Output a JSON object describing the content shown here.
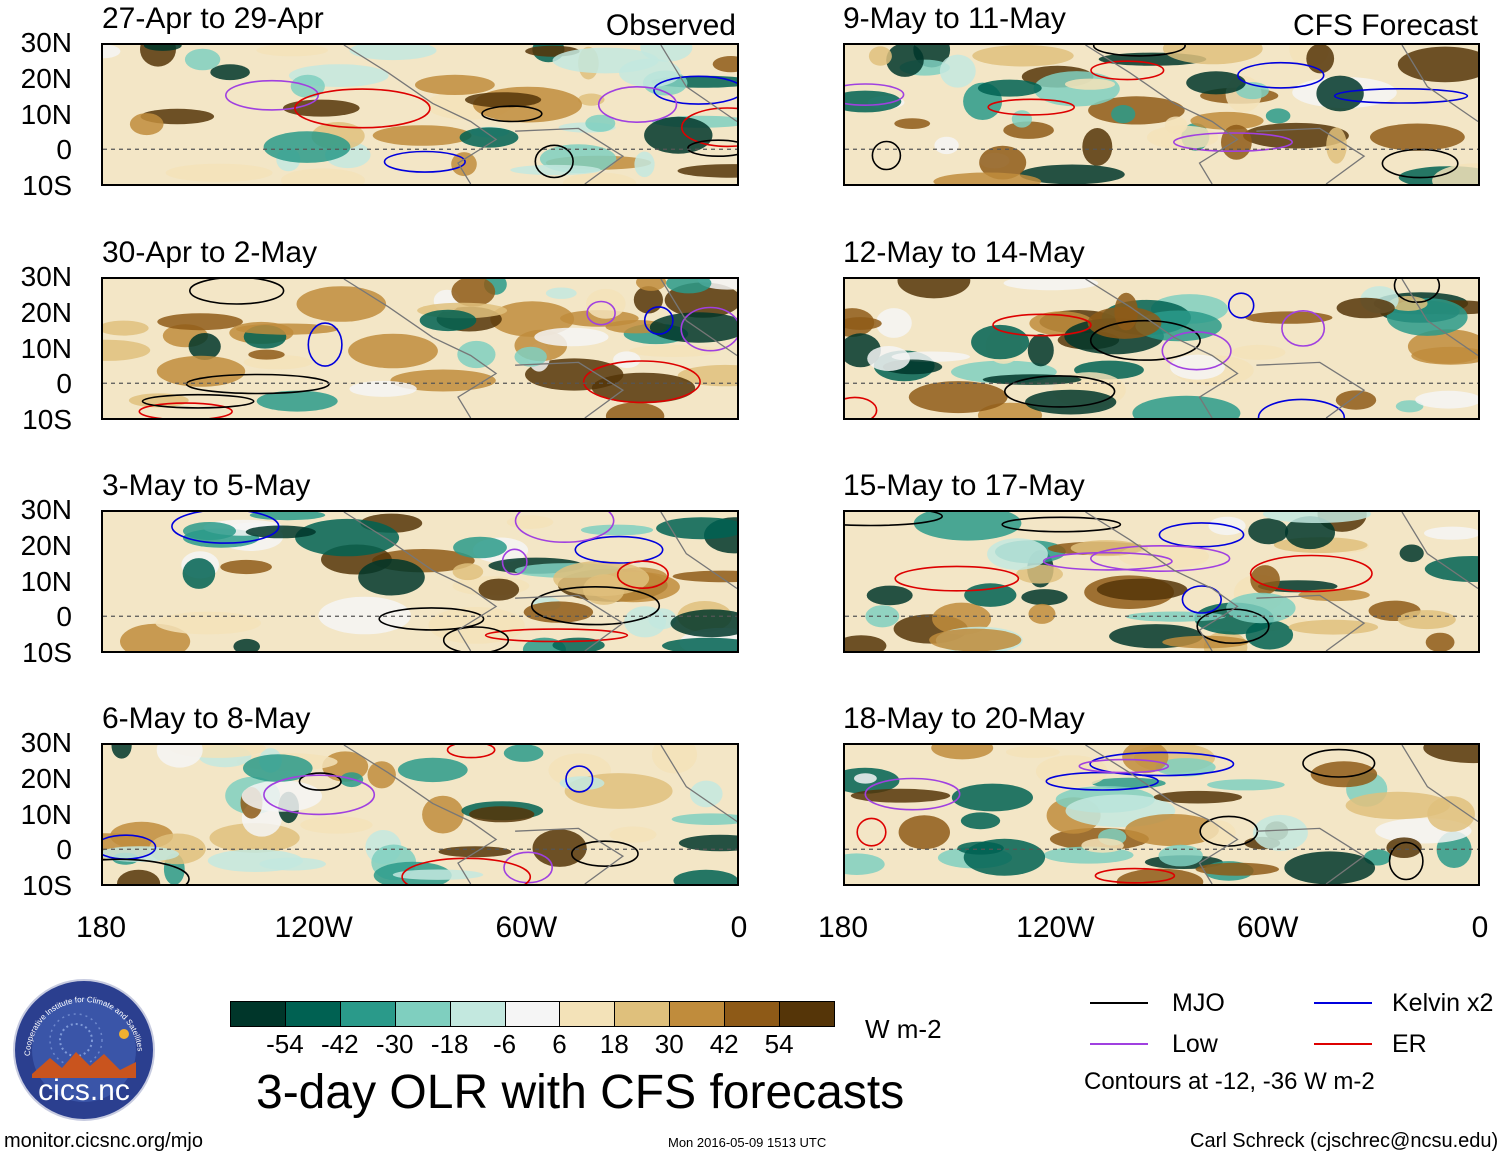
{
  "header": {
    "left_label": "Observed",
    "right_label": "CFS Forecast"
  },
  "panels": [
    {
      "title": "27-Apr to 29-Apr",
      "column": "observed",
      "row": 0
    },
    {
      "title": "30-Apr to 2-May",
      "column": "observed",
      "row": 1
    },
    {
      "title": "3-May to 5-May",
      "column": "observed",
      "row": 2
    },
    {
      "title": "6-May to 8-May",
      "column": "observed",
      "row": 3
    },
    {
      "title": "9-May to 11-May",
      "column": "forecast",
      "row": 0
    },
    {
      "title": "12-May to 14-May",
      "column": "forecast",
      "row": 1
    },
    {
      "title": "15-May to 17-May",
      "column": "forecast",
      "row": 2
    },
    {
      "title": "18-May to 20-May",
      "column": "forecast",
      "row": 3
    }
  ],
  "axes": {
    "lat_labels": [
      "30N",
      "20N",
      "10N",
      "0",
      "10S"
    ],
    "lat_values": [
      30,
      20,
      10,
      0,
      -10
    ],
    "lon_labels": [
      "180",
      "120W",
      "60W",
      "0"
    ],
    "lon_values": [
      -180,
      -120,
      -60,
      0
    ]
  },
  "colorbar": {
    "unit": "W m-2",
    "ticks": [
      "-54",
      "-42",
      "-30",
      "-18",
      "-6",
      "6",
      "18",
      "30",
      "42",
      "54"
    ],
    "colors": [
      "#00362a",
      "#006152",
      "#2a9a8a",
      "#7fcfbf",
      "#c3e8df",
      "#f5f5f5",
      "#f3e2b8",
      "#dfc07c",
      "#c08c3c",
      "#8e5a17",
      "#553508"
    ]
  },
  "main_title": "3-day OLR with CFS forecasts",
  "legend": {
    "items": [
      {
        "label": "MJO",
        "color": "#000000"
      },
      {
        "label": "Kelvin x2",
        "color": "#0000dd"
      },
      {
        "label": "Low",
        "color": "#a040e0"
      },
      {
        "label": "ER",
        "color": "#dd0000"
      }
    ],
    "note": "Contours at -12, -36 W m-2"
  },
  "logo": {
    "text": "cics.nc",
    "ring_text": "Cooperative Institute for Climate and Satellites"
  },
  "footer": {
    "url": "monitor.cicsnc.org/mjo",
    "timestamp": "Mon 2016-05-09 1513 UTC",
    "author": "Carl Schreck (cjschrec@ncsu.edu)"
  },
  "chart_data": {
    "type": "heatmap",
    "variable": "OLR anomaly (3-day mean)",
    "unit": "W m-2",
    "lat_range": [
      -10,
      30
    ],
    "lon_range": [
      -180,
      0
    ],
    "color_levels": [
      -54,
      -42,
      -30,
      -18,
      -6,
      6,
      18,
      30,
      42,
      54
    ],
    "contour_levels": [
      -12,
      -36
    ]
  }
}
